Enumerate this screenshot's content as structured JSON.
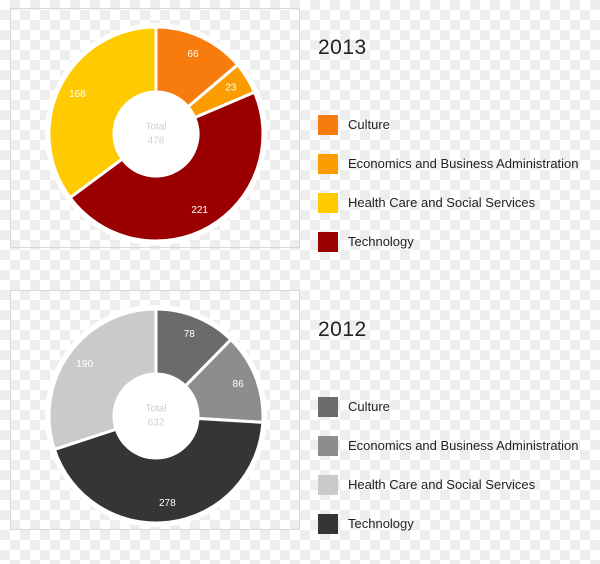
{
  "chart_data": [
    {
      "type": "pie",
      "title": "2013",
      "total_label": "Total",
      "total_value": "478",
      "categories": [
        "Culture",
        "Economics and Business Administration",
        "Technology",
        "Health Care and Social Services"
      ],
      "values": [
        66,
        23,
        221,
        168
      ],
      "colors": [
        "#f77b0d",
        "#fb9c00",
        "#9a0000",
        "#ffcb00"
      ],
      "label_colors": [
        "#ffffff",
        "#ffffff",
        "#ffffff",
        "#ffffff"
      ],
      "legend": [
        {
          "label": "Culture",
          "color": "#f77b0d"
        },
        {
          "label": "Economics and Business Administration",
          "color": "#fb9c00"
        },
        {
          "label": "Health Care and Social Services",
          "color": "#ffcb00"
        },
        {
          "label": "Technology",
          "color": "#9a0000"
        }
      ],
      "legend_position": "right"
    },
    {
      "type": "pie",
      "title": "2012",
      "total_label": "Total",
      "total_value": "632",
      "categories": [
        "Culture",
        "Economics and Business Administration",
        "Technology",
        "Health Care and Social Services"
      ],
      "values": [
        78,
        86,
        278,
        190
      ],
      "colors": [
        "#6b6b6b",
        "#8d8d8d",
        "#353535",
        "#cacaca"
      ],
      "label_colors": [
        "#ffffff",
        "#ffffff",
        "#ffffff",
        "#ffffff"
      ],
      "legend": [
        {
          "label": "Culture",
          "color": "#6b6b6b"
        },
        {
          "label": "Economics and Business Administration",
          "color": "#8d8d8d"
        },
        {
          "label": "Health Care and Social Services",
          "color": "#cacaca"
        },
        {
          "label": "Technology",
          "color": "#353535"
        }
      ],
      "legend_position": "right"
    }
  ]
}
